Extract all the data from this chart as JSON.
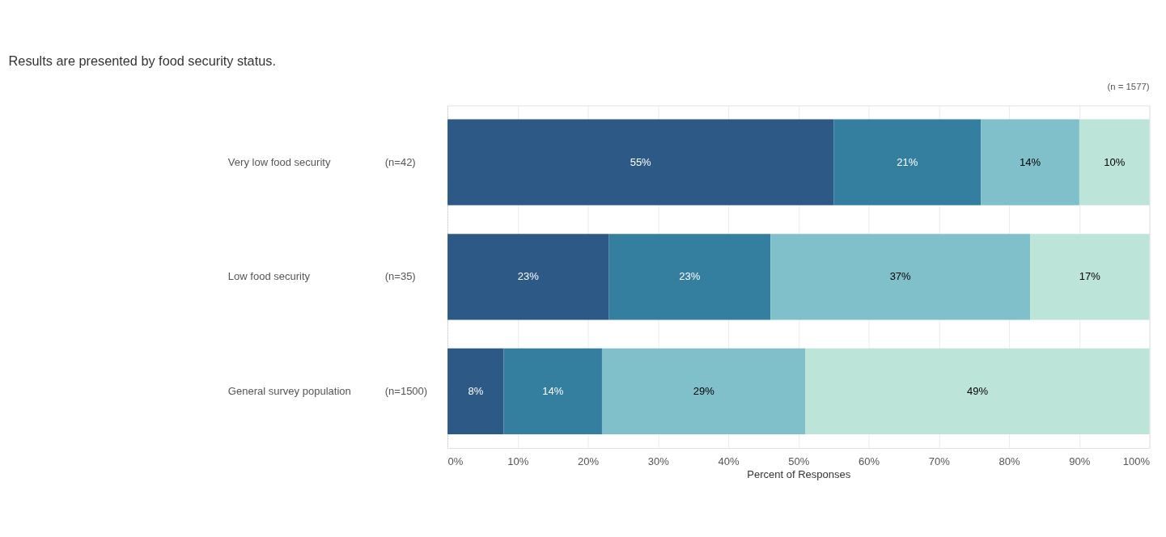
{
  "chart_data": {
    "type": "bar",
    "orientation": "horizontal",
    "stacked": true,
    "title": "Results are presented by food security status.",
    "xlabel": "Percent of Responses",
    "categories": [
      "Very low food security",
      "Low food security",
      "General survey population"
    ],
    "series": [
      {
        "color": "#2d5986",
        "values": [
          55,
          23,
          8
        ],
        "value_labels": [
          "55%",
          "23%",
          "8%"
        ]
      },
      {
        "color": "#347ea0",
        "values": [
          21,
          23,
          14
        ],
        "value_labels": [
          "21%",
          "23%",
          "14%"
        ]
      },
      {
        "color": "#7fc0ca",
        "values": [
          14,
          37,
          29
        ],
        "value_labels": [
          "14%",
          "37%",
          "29%"
        ]
      },
      {
        "color": "#bde4d9",
        "values": [
          10,
          17,
          49
        ],
        "value_labels": [
          "10%",
          "17%",
          "49%"
        ]
      }
    ],
    "xlim": [
      0,
      100
    ],
    "xticks": [
      {
        "value": 0,
        "label": "0%"
      },
      {
        "value": 10,
        "label": "10%"
      },
      {
        "value": 20,
        "label": "20%"
      },
      {
        "value": 30,
        "label": "30%"
      },
      {
        "value": 40,
        "label": "40%"
      },
      {
        "value": 50,
        "label": "50%"
      },
      {
        "value": 60,
        "label": "60%"
      },
      {
        "value": 70,
        "label": "70%"
      },
      {
        "value": 80,
        "label": "80%"
      },
      {
        "value": 90,
        "label": "90%"
      },
      {
        "value": 100,
        "label": "100%"
      }
    ],
    "grid": "x",
    "legend": false,
    "annotations": [
      "(n=42)",
      "(n=35)",
      "(n=1500)",
      "(n = 1577)"
    ]
  }
}
